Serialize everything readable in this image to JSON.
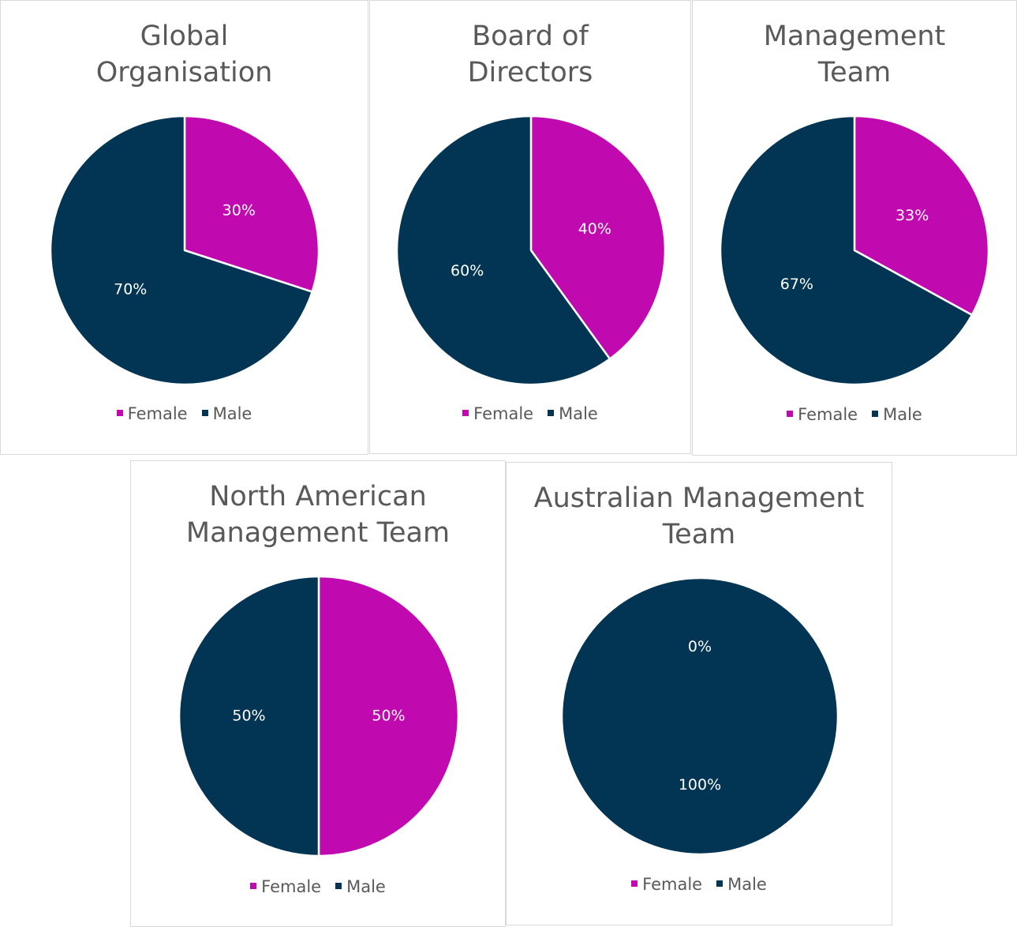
{
  "chart_data": [
    {
      "type": "pie",
      "title": "Global Organisation",
      "categories": [
        "Female",
        "Male"
      ],
      "values": [
        30,
        70
      ],
      "value_labels": [
        "30%",
        "70%"
      ],
      "colors": [
        "#c00ab0",
        "#023554"
      ],
      "legend": "bottom"
    },
    {
      "type": "pie",
      "title": "Board of Directors",
      "categories": [
        "Female",
        "Male"
      ],
      "values": [
        40,
        60
      ],
      "value_labels": [
        "40%",
        "60%"
      ],
      "colors": [
        "#c00ab0",
        "#023554"
      ],
      "legend": "bottom"
    },
    {
      "type": "pie",
      "title": "Management Team",
      "categories": [
        "Female",
        "Male"
      ],
      "values": [
        33,
        67
      ],
      "value_labels": [
        "33%",
        "67%"
      ],
      "colors": [
        "#c00ab0",
        "#023554"
      ],
      "legend": "bottom"
    },
    {
      "type": "pie",
      "title": "North American Management Team",
      "categories": [
        "Female",
        "Male"
      ],
      "values": [
        50,
        50
      ],
      "value_labels": [
        "50%",
        "50%"
      ],
      "colors": [
        "#c00ab0",
        "#023554"
      ],
      "legend": "bottom"
    },
    {
      "type": "pie",
      "title": "Australian Management Team",
      "categories": [
        "Female",
        "Male"
      ],
      "values": [
        0,
        100
      ],
      "value_labels": [
        "0%",
        "100%"
      ],
      "colors": [
        "#c00ab0",
        "#023554"
      ],
      "legend": "bottom"
    }
  ]
}
